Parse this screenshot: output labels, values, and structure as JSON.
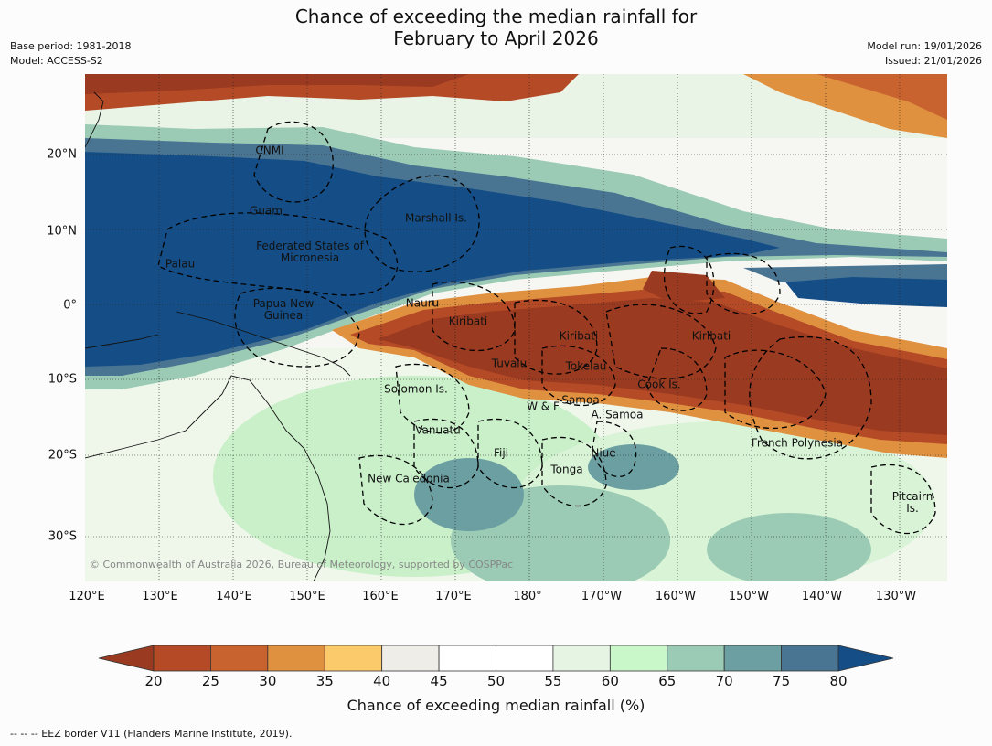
{
  "title_line1": "Chance of exceeding the median rainfall for",
  "title_line2": "February to April 2026",
  "meta_left": {
    "base_period": "Base period: 1981-2018",
    "model": "Model: ACCESS-S2"
  },
  "meta_right": {
    "model_run": "Model run: 19/01/2026",
    "issued": "Issued: 21/01/2026"
  },
  "copyright": "© Commonwealth of Australia 2026, Bureau of Meteorology, supported by COSPPac",
  "latitude_labels": [
    "20°N",
    "10°N",
    "0°",
    "10°S",
    "20°S",
    "30°S"
  ],
  "longitude_labels": [
    "120°E",
    "130°E",
    "140°E",
    "150°E",
    "160°E",
    "170°E",
    "180°",
    "170°W",
    "160°W",
    "150°W",
    "140°W",
    "130°W"
  ],
  "regions": [
    "CNMI",
    "Guam",
    "Marshall Is.",
    "Federated States of Micronesia",
    "Palau",
    "Papua New Guinea",
    "Nauru",
    "Kiribati",
    "Kiribati",
    "Kiribati",
    "Tuvalu",
    "Tokelau",
    "Solomon Is.",
    "Cook Is.",
    "W & F",
    "Samoa",
    "A. Samoa",
    "Vanuatu",
    "Fiji",
    "Niue",
    "French Polynesia",
    "Tonga",
    "New Caledonia",
    "Pitcairn Is."
  ],
  "colorbar": {
    "ticks": [
      "20",
      "25",
      "30",
      "35",
      "40",
      "45",
      "50",
      "55",
      "60",
      "65",
      "70",
      "75",
      "80"
    ],
    "colors": [
      "#9a3a20",
      "#b44a26",
      "#c8632f",
      "#e09140",
      "#fbca6b",
      "#efede8",
      "#ffffff",
      "#ffffff",
      "#e6f5e3",
      "#c9f7c9",
      "#9bcbb4",
      "#6b9fa1",
      "#497593",
      "#154e86"
    ],
    "label": "Chance of exceeding median rainfall (%)"
  },
  "footnote": "--  --  -- EEZ border V11 (Flanders Marine Institute, 2019)."
}
